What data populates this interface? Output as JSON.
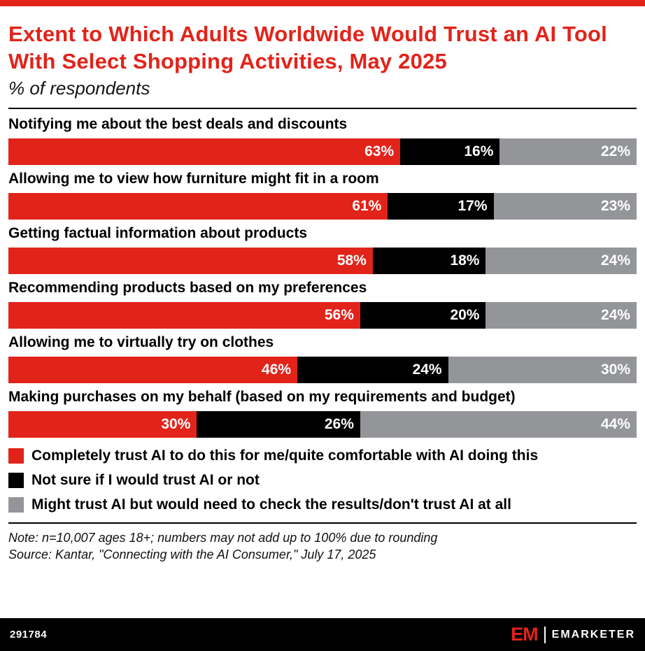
{
  "colors": {
    "red": "#e2231a",
    "black": "#000000",
    "gray": "#939598"
  },
  "header": {
    "title": "Extent to Which Adults Worldwide Would Trust an AI Tool With Select Shopping Activities, May 2025",
    "subtitle": "% of respondents"
  },
  "chart_data": {
    "type": "bar",
    "orientation": "horizontal",
    "stacked": true,
    "unit": "%",
    "xlim": [
      0,
      100
    ],
    "grid": false,
    "legend_position": "bottom",
    "categories": [
      "Notifying me about the best deals and discounts",
      "Allowing me to view how furniture might fit in a room",
      "Getting factual information about products",
      "Recommending products based on my preferences",
      "Allowing me to virtually try on clothes",
      "Making purchases on my behalf (based on my requirements and budget)"
    ],
    "series": [
      {
        "name": "Completely trust AI to do this for me/quite comfortable with AI doing this",
        "color": "#e2231a",
        "values": [
          63,
          61,
          58,
          56,
          46,
          30
        ]
      },
      {
        "name": "Not sure if I would trust AI or not",
        "color": "#000000",
        "values": [
          16,
          17,
          18,
          20,
          24,
          26
        ]
      },
      {
        "name": "Might trust AI but would need to check the results/don't trust AI at all",
        "color": "#939598",
        "values": [
          22,
          23,
          24,
          24,
          30,
          44
        ]
      }
    ]
  },
  "notes": {
    "note": "Note: n=10,007 ages 18+; numbers may not add up to 100% due to rounding",
    "source": "Source: Kantar, \"Connecting with the AI Consumer,\" July 17, 2025"
  },
  "footer": {
    "chart_id": "291784",
    "brand_mark": "EM",
    "brand_name": "EMARKETER"
  }
}
